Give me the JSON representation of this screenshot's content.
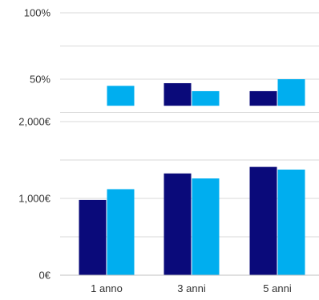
{
  "chart_data": [
    {
      "type": "bar",
      "categories": [
        "1 anno",
        "3 anni",
        "5 anni"
      ],
      "ylim": [
        0,
        100
      ],
      "ticks": [
        {
          "value": 50,
          "label": "50%"
        },
        {
          "value": 100,
          "label": "100%"
        }
      ],
      "baseline": 30,
      "series": [
        {
          "color": "#0a0a7a",
          "values": [
            26,
            47,
            41
          ]
        },
        {
          "color": "#00aeef",
          "values": [
            45,
            41,
            50
          ]
        }
      ]
    },
    {
      "type": "bar",
      "categories": [
        "1 anno",
        "3 anni",
        "5 anni"
      ],
      "ylim": [
        0,
        2000
      ],
      "ticks": [
        {
          "value": 0,
          "label": "0€"
        },
        {
          "value": 1000,
          "label": "1,000€"
        },
        {
          "value": 2000,
          "label": "2,000€"
        }
      ],
      "series": [
        {
          "color": "#0a0a7a",
          "values": [
            980,
            1325,
            1410
          ]
        },
        {
          "color": "#00aeef",
          "values": [
            1120,
            1260,
            1375
          ]
        }
      ]
    }
  ]
}
